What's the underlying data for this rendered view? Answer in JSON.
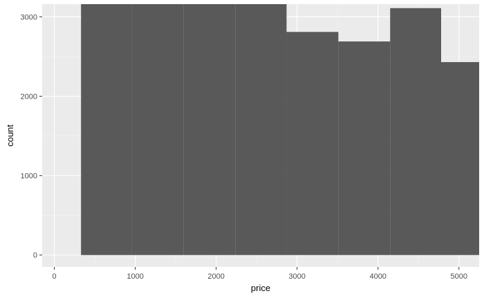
{
  "chart_data": {
    "type": "bar",
    "title": "",
    "xlabel": "price",
    "ylabel": "count",
    "xlim": [
      -150,
      5250
    ],
    "ylim": [
      -150,
      3160
    ],
    "x_ticks": [
      0,
      1000,
      2000,
      3000,
      4000,
      5000
    ],
    "y_ticks": [
      0,
      1000,
      2000,
      3000
    ],
    "x_tick_labels": [
      "0",
      "1000",
      "2000",
      "3000",
      "4000",
      "5000"
    ],
    "y_tick_labels": [
      "0",
      "1000",
      "2000",
      "3000"
    ],
    "bins": [
      {
        "x_start": 330,
        "x_end": 960,
        "count": 3160
      },
      {
        "x_start": 960,
        "x_end": 1600,
        "count": 3160
      },
      {
        "x_start": 1600,
        "x_end": 2240,
        "count": 3160
      },
      {
        "x_start": 2240,
        "x_end": 2870,
        "count": 3160
      },
      {
        "x_start": 2870,
        "x_end": 3510,
        "count": 2810
      },
      {
        "x_start": 3510,
        "x_end": 4150,
        "count": 2690
      },
      {
        "x_start": 4150,
        "x_end": 4780,
        "count": 3110
      },
      {
        "x_start": 4780,
        "x_end": 5420,
        "count": 2430
      }
    ],
    "grid": true,
    "legend": "none"
  },
  "colors": {
    "panel_background": "#ebebeb",
    "grid_major": "#ffffff",
    "grid_minor": "#f5f5f5",
    "bar_fill": "#595959",
    "tick_text": "#4d4d4d",
    "axis_title": "#000000",
    "tick_mark": "#333333"
  }
}
